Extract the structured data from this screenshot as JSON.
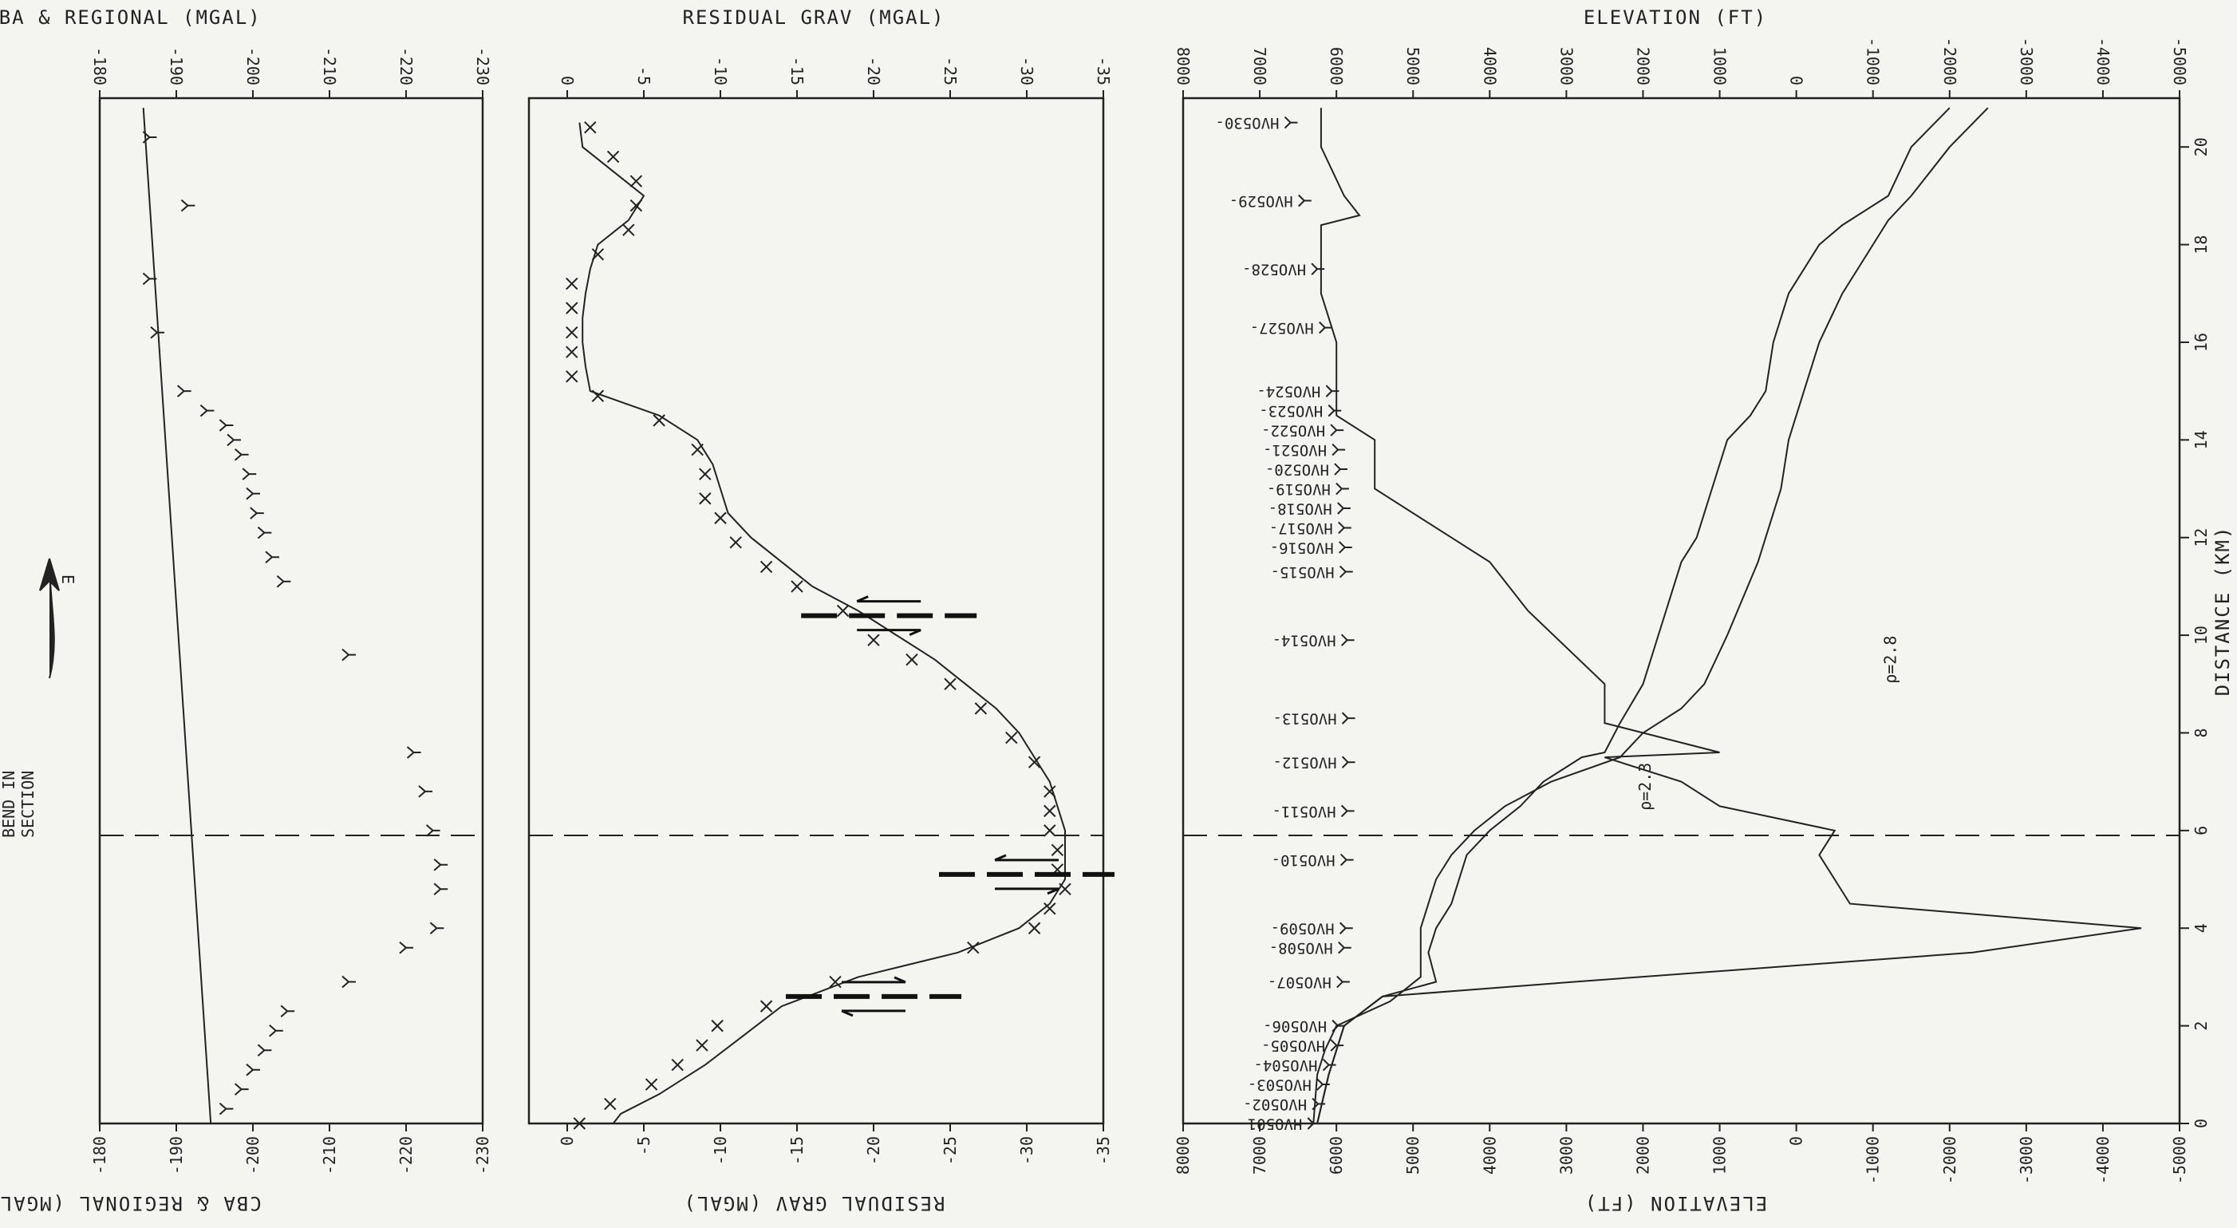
{
  "chart_data": [
    {
      "id": "elevation",
      "type": "line",
      "xlabel": "DISTANCE (KM)",
      "ylabel": "ELEVATION (FT)",
      "xlim": [
        0,
        21
      ],
      "ylim": [
        8000,
        -5000
      ],
      "x_ticks": [
        0,
        2,
        4,
        6,
        8,
        10,
        12,
        14,
        16,
        18,
        20
      ],
      "y_ticks": [
        8000,
        7000,
        6000,
        5000,
        4000,
        3000,
        2000,
        1000,
        0,
        -1000,
        -2000,
        -3000,
        -4000,
        -5000
      ],
      "x_tick_labels": [
        "0",
        "2",
        "4",
        "6",
        "8",
        "10",
        "12",
        "14",
        "16",
        "18",
        "20"
      ],
      "y_tick_labels": [
        "8000",
        "7000",
        "6000",
        "5000",
        "4000",
        "3000",
        "2000",
        "1000",
        "0",
        "-1000",
        "-2000",
        "-3000",
        "-4000",
        "-5000"
      ],
      "series": [
        {
          "x": [
            0,
            1,
            1.5,
            2,
            2.5,
            3,
            4,
            4.5,
            5,
            5.5,
            6,
            6.5,
            7,
            7.5,
            8,
            8.5,
            9,
            10,
            11.5,
            12,
            13,
            14,
            14.5,
            15,
            16,
            17,
            18,
            18.5,
            19,
            20,
            20.8
          ],
          "y": [
            6300,
            6250,
            6150,
            6000,
            5300,
            4900,
            4900,
            4800,
            4700,
            4500,
            4200,
            3800,
            3200,
            2300,
            2000,
            1500,
            1200,
            900,
            500,
            400,
            200,
            100,
            0,
            -100,
            -300,
            -600,
            -1000,
            -1200,
            -1500,
            -2000,
            -2500
          ]
        },
        {
          "x": [
            0,
            1,
            2,
            2.6,
            2.9,
            3.5,
            4.0,
            4.5,
            5.5,
            6.0,
            6.5,
            7.0,
            7.5,
            7.6,
            8.2,
            9.0,
            10.5,
            11.5,
            12.0,
            13.0,
            14.0,
            14.5,
            15.0,
            16.0,
            17.0,
            18.0,
            18.4,
            18.6,
            19.0,
            20.0,
            20.8
          ],
          "y": [
            6250,
            6100,
            5900,
            5400,
            4700,
            4800,
            4700,
            4500,
            4300,
            4000,
            3600,
            3300,
            2800,
            2500,
            2300,
            2000,
            1700,
            1500,
            1300,
            1100,
            900,
            600,
            400,
            300,
            100,
            -300,
            -600,
            -800,
            -1200,
            -1500,
            -2000
          ]
        },
        {
          "x": [
            0,
            1,
            2,
            2.6,
            2.9,
            3.5,
            4.0,
            4.5,
            5.5,
            6.0,
            6.5,
            7.0,
            7.5,
            7.6,
            8.2,
            9.0,
            10.5,
            11.5,
            12.0,
            13.0,
            14.0,
            14.5,
            15.0,
            16.0,
            17.0,
            18.0,
            18.4,
            18.6,
            19.0,
            20.0,
            20.8
          ],
          "y": [
            6250,
            6100,
            5900,
            5400,
            2900,
            -2300,
            -4500,
            -700,
            -300,
            -500,
            1000,
            1500,
            2500,
            1000,
            2500,
            2500,
            3500,
            4000,
            4500,
            5500,
            5500,
            6000,
            6000,
            6000,
            6200,
            6200,
            6200,
            5700,
            5900,
            6200,
            6200
          ]
        }
      ],
      "stations": [
        {
          "label": "HVO501",
          "x": 0.0,
          "y": 6300
        },
        {
          "label": "HVO502",
          "x": 0.4,
          "y": 6240
        },
        {
          "label": "HVO503",
          "x": 0.8,
          "y": 6180
        },
        {
          "label": "HVO504",
          "x": 1.2,
          "y": 6100
        },
        {
          "label": "HVO505",
          "x": 1.6,
          "y": 6000
        },
        {
          "label": "HVO506",
          "x": 2.0,
          "y": 5980
        },
        {
          "label": "HVO507",
          "x": 2.9,
          "y": 5920
        },
        {
          "label": "HVO508",
          "x": 3.6,
          "y": 5900
        },
        {
          "label": "HVO509",
          "x": 4.0,
          "y": 5880
        },
        {
          "label": "HVO510",
          "x": 5.4,
          "y": 5870
        },
        {
          "label": "HVO511",
          "x": 6.4,
          "y": 5860
        },
        {
          "label": "HVO512",
          "x": 7.4,
          "y": 5850
        },
        {
          "label": "HVO513",
          "x": 8.3,
          "y": 5850
        },
        {
          "label": "HVO514",
          "x": 9.9,
          "y": 5860
        },
        {
          "label": "HVO515",
          "x": 11.3,
          "y": 5880
        },
        {
          "label": "HVO516",
          "x": 11.8,
          "y": 5890
        },
        {
          "label": "HVO517",
          "x": 12.2,
          "y": 5900
        },
        {
          "label": "HVO518",
          "x": 12.6,
          "y": 5910
        },
        {
          "label": "HVO519",
          "x": 13.0,
          "y": 5930
        },
        {
          "label": "HVO520",
          "x": 13.4,
          "y": 5950
        },
        {
          "label": "HVO521",
          "x": 13.8,
          "y": 5980
        },
        {
          "label": "HVO522",
          "x": 14.2,
          "y": 6000
        },
        {
          "label": "HVO523",
          "x": 14.6,
          "y": 6030
        },
        {
          "label": "HVO524",
          "x": 15.0,
          "y": 6060
        },
        {
          "label": "HVO527",
          "x": 16.3,
          "y": 6150
        },
        {
          "label": "HVO528",
          "x": 17.5,
          "y": 6250
        },
        {
          "label": "HVO529",
          "x": 18.9,
          "y": 6420
        },
        {
          "label": "HVO530",
          "x": 20.5,
          "y": 6600
        }
      ],
      "bend_x": 5.9,
      "annotations": [
        {
          "text": "ρ=2.3",
          "x": 6.9,
          "y": 1900
        },
        {
          "text": "ρ=2.8",
          "x": 9.5,
          "y": -1300
        }
      ]
    },
    {
      "id": "residual",
      "type": "line",
      "xlabel": "DISTANCE (KM)",
      "ylabel": "RESIDUAL GRAV (MGAL)",
      "xlim": [
        0,
        21
      ],
      "ylim": [
        2.5,
        -35
      ],
      "y_ticks": [
        0,
        -5,
        -10,
        -15,
        -20,
        -25,
        -30,
        -35
      ],
      "y_tick_labels": [
        "0",
        "-5",
        "-10",
        "-15",
        "-20",
        "-25",
        "-30",
        "-35"
      ],
      "observed_x": [
        0,
        0.4,
        0.8,
        1.2,
        1.6,
        2.0,
        2.4,
        2.9,
        3.6,
        4.0,
        4.4,
        4.8,
        5.2,
        5.6,
        6.0,
        6.4,
        6.8,
        7.4,
        7.9,
        8.5,
        9.0,
        9.5,
        9.9,
        10.5,
        11.0,
        11.4,
        11.9,
        12.4,
        12.8,
        13.3,
        13.8,
        14.4,
        14.9,
        15.3,
        15.8,
        16.2,
        16.7,
        17.2,
        17.8,
        18.3,
        18.8,
        19.3,
        19.8,
        20.4
      ],
      "observed_y": [
        -0.8,
        -2.8,
        -5.5,
        -7.2,
        -8.8,
        -9.8,
        -13,
        -17.5,
        -26.5,
        -30.5,
        -31.5,
        -32.5,
        -32,
        -32,
        -31.5,
        -31.5,
        -31.5,
        -30.5,
        -29,
        -27,
        -25,
        -22.5,
        -20,
        -18,
        -15,
        -13,
        -11,
        -10,
        -9,
        -9,
        -8.5,
        -6,
        -2,
        -0.3,
        -0.3,
        -0.3,
        -0.3,
        -0.3,
        -2,
        -4,
        -4.5,
        -4.5,
        -3,
        -1.5
      ],
      "computed_x": [
        0,
        0.2,
        0.6,
        1.2,
        1.8,
        2.4,
        3.0,
        3.5,
        4.0,
        4.5,
        5.0,
        5.5,
        6.0,
        6.5,
        7.0,
        7.5,
        8.0,
        8.5,
        9.0,
        9.5,
        10.0,
        10.5,
        11.0,
        11.5,
        12.0,
        12.5,
        13.0,
        13.5,
        14.0,
        14.5,
        15.0,
        15.5,
        16.0,
        16.5,
        17.0,
        17.5,
        18.0,
        18.5,
        19.0,
        19.5,
        20.0,
        20.5
      ],
      "computed_y": [
        -3,
        -3.5,
        -6,
        -9,
        -11.5,
        -14,
        -19,
        -25.5,
        -29.5,
        -31.5,
        -32.5,
        -32.5,
        -32.5,
        -32,
        -31.5,
        -30.5,
        -29.5,
        -28,
        -26,
        -24,
        -21.5,
        -19,
        -16,
        -14,
        -12,
        -10.5,
        -10,
        -9.5,
        -8.5,
        -6,
        -1.5,
        -1.2,
        -1.0,
        -1.0,
        -1.2,
        -1.5,
        -2.0,
        -4,
        -5,
        -3,
        -1,
        -0.8
      ],
      "bend_x": 5.9,
      "faults": [
        {
          "x": 2.6,
          "y": -20
        },
        {
          "x": 5.1,
          "y": -30
        },
        {
          "x": 10.4,
          "y": -21
        }
      ]
    },
    {
      "id": "regional",
      "type": "line",
      "xlabel": "DISTANCE (KM)",
      "ylabel": "CBA & REGIONAL (MGAL)",
      "xlim": [
        0,
        21
      ],
      "ylim": [
        -180,
        -230
      ],
      "y_ticks": [
        -180,
        -190,
        -200,
        -210,
        -220,
        -230
      ],
      "y_tick_labels": [
        "-180",
        "-190",
        "-200",
        "-210",
        "-220",
        "-230"
      ],
      "regional_x": [
        0,
        20.8
      ],
      "regional_y": [
        -194.5,
        -185.7
      ],
      "cba_x": [
        0.3,
        0.7,
        1.1,
        1.5,
        1.9,
        2.3,
        2.9,
        3.6,
        4.0,
        4.8,
        5.3,
        6.0,
        6.8,
        7.6,
        9.6,
        11.1,
        11.6,
        12.1,
        12.5,
        12.9,
        13.3,
        13.7,
        14.0,
        14.3,
        14.6,
        15.0,
        16.2,
        17.3,
        18.8,
        20.2
      ],
      "cba_y": [
        -196.5,
        -198.5,
        -200,
        -201.5,
        -203,
        -204.5,
        -212.5,
        -220,
        -224,
        -224.5,
        -224.5,
        -223.5,
        -222.5,
        -221,
        -212.5,
        -204,
        -202.5,
        -201.5,
        -200.5,
        -200,
        -199.5,
        -198.5,
        -197.5,
        -196.5,
        -194,
        -191,
        -187.5,
        -186.5,
        -191.5,
        -186.5
      ],
      "bend_x": 5.9
    }
  ],
  "labels": {
    "bend": [
      "BEND IN",
      "SECTION"
    ],
    "direction": "E"
  }
}
